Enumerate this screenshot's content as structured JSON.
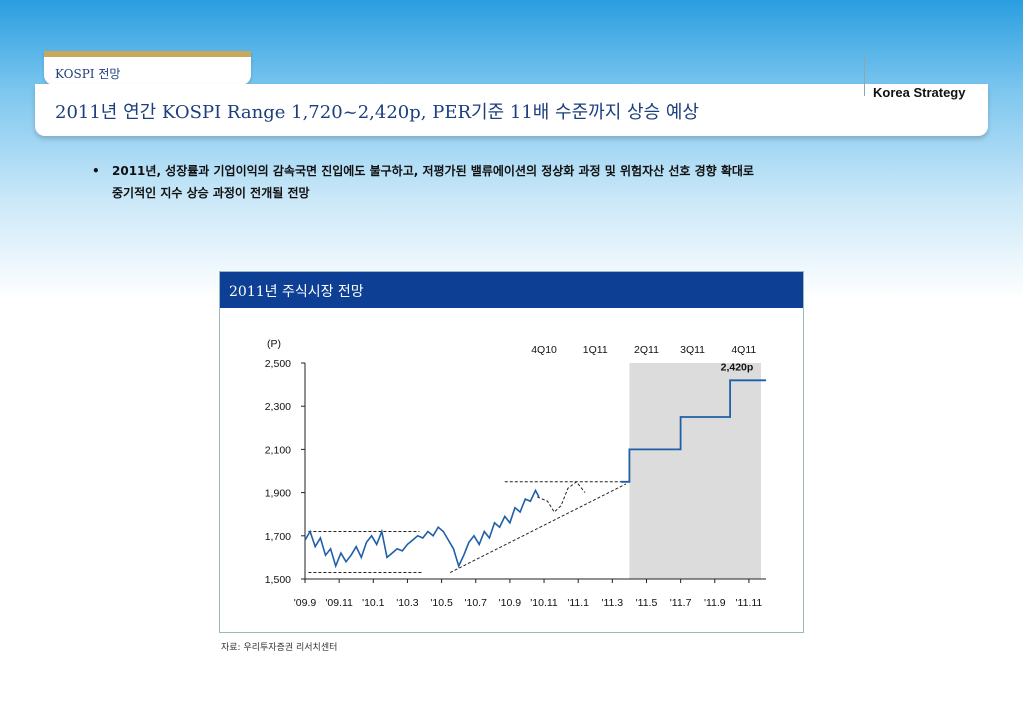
{
  "header": {
    "section_tab": "KOSPI 전망",
    "title": "2011년 연간 KOSPI Range 1,720~2,420p, PER기준 11배 수준까지 상승 예상",
    "brand": "Korea Strategy"
  },
  "bullet": {
    "marker": "•",
    "line1": "2011년, 성장률과 기업이익의 감속국면 진입에도 불구하고, 저평가된 밸류에이션의 정상화 과정 및 위험자산 선호 경향 확대로",
    "line2": "중기적인 지수 상승 과정이 전개될 전망"
  },
  "chart_panel": {
    "title": "2011년 주식시장 전망",
    "source": "자료: 우리투자증권 리서치센터"
  },
  "colors": {
    "accent_blue": "#0d3f94",
    "line_blue": "#1f5fa8",
    "forecast_shade": "#dcdcdc",
    "highlight_red": "#e8141b"
  },
  "chart_data": {
    "type": "line",
    "title": "2011년 주식시장 전망",
    "ylabel": "(P)",
    "ylim": [
      1500,
      2500
    ],
    "yticks": [
      {
        "v": 1500,
        "label": "1,500"
      },
      {
        "v": 1700,
        "label": "1,700"
      },
      {
        "v": 1900,
        "label": "1,900"
      },
      {
        "v": 2100,
        "label": "2,100"
      },
      {
        "v": 2300,
        "label": "2,300"
      },
      {
        "v": 2500,
        "label": "2,500"
      }
    ],
    "xlim": [
      0,
      27
    ],
    "xticks": [
      {
        "v": 0,
        "label": "'09.9"
      },
      {
        "v": 2,
        "label": "'09.11"
      },
      {
        "v": 4,
        "label": "'10.1"
      },
      {
        "v": 6,
        "label": "'10.3"
      },
      {
        "v": 8,
        "label": "'10.5"
      },
      {
        "v": 10,
        "label": "'10.7"
      },
      {
        "v": 12,
        "label": "'10.9"
      },
      {
        "v": 14,
        "label": "'10.11"
      },
      {
        "v": 16,
        "label": "'11.1"
      },
      {
        "v": 18,
        "label": "'11.3"
      },
      {
        "v": 20,
        "label": "'11.5"
      },
      {
        "v": 22,
        "label": "'11.7"
      },
      {
        "v": 24,
        "label": "'11.9"
      },
      {
        "v": 26,
        "label": "'11.11"
      }
    ],
    "quarter_labels": [
      {
        "v": 14,
        "label": "4Q10"
      },
      {
        "v": 17,
        "label": "1Q11"
      },
      {
        "v": 20,
        "label": "2Q11"
      },
      {
        "v": 22.7,
        "label": "3Q11"
      },
      {
        "v": 25.7,
        "label": "4Q11"
      }
    ],
    "forecast_shade_range": [
      19,
      27.5
    ],
    "actual_series": {
      "x": [
        0,
        0.3,
        0.6,
        0.9,
        1.2,
        1.5,
        1.8,
        2.1,
        2.4,
        2.7,
        3.0,
        3.3,
        3.6,
        3.9,
        4.2,
        4.5,
        4.8,
        5.1,
        5.4,
        5.7,
        6.0,
        6.3,
        6.6,
        6.9,
        7.2,
        7.5,
        7.8,
        8.1,
        8.4,
        8.7,
        9.0,
        9.3,
        9.6,
        9.9,
        10.2,
        10.5,
        10.8,
        11.1,
        11.4,
        11.7,
        12.0,
        12.3,
        12.6,
        12.9,
        13.2,
        13.5,
        13.7
      ],
      "y": [
        1680,
        1720,
        1650,
        1690,
        1610,
        1640,
        1560,
        1620,
        1580,
        1610,
        1650,
        1600,
        1670,
        1700,
        1660,
        1720,
        1600,
        1620,
        1640,
        1630,
        1660,
        1680,
        1700,
        1690,
        1720,
        1700,
        1740,
        1720,
        1680,
        1640,
        1560,
        1610,
        1670,
        1700,
        1660,
        1720,
        1690,
        1760,
        1740,
        1790,
        1760,
        1830,
        1810,
        1870,
        1860,
        1910,
        1880
      ]
    },
    "projection_series": {
      "x": [
        18.5,
        19.0,
        19.0,
        22.0,
        22.0,
        24.9,
        24.9,
        27.0
      ],
      "y": [
        1950,
        1950,
        2100,
        2100,
        2250,
        2250,
        2420,
        2420
      ]
    },
    "range_lines": [
      {
        "x": [
          0.2,
          6.7
        ],
        "y": [
          1720,
          1720
        ]
      },
      {
        "x": [
          0.2,
          6.9
        ],
        "y": [
          1530,
          1530
        ]
      },
      {
        "x": [
          11.7,
          18.8
        ],
        "y": [
          1950,
          1950
        ]
      },
      {
        "x": [
          8.5,
          18.8
        ],
        "y": [
          1530,
          1940
        ]
      }
    ],
    "dip_curve": {
      "x": [
        13.6,
        14.2,
        14.6,
        15.0,
        15.4,
        15.9,
        16.4
      ],
      "y": [
        1880,
        1860,
        1810,
        1840,
        1920,
        1950,
        1900
      ]
    },
    "annotation": {
      "x": 25.3,
      "y": 2420,
      "label": "2,420p"
    }
  }
}
